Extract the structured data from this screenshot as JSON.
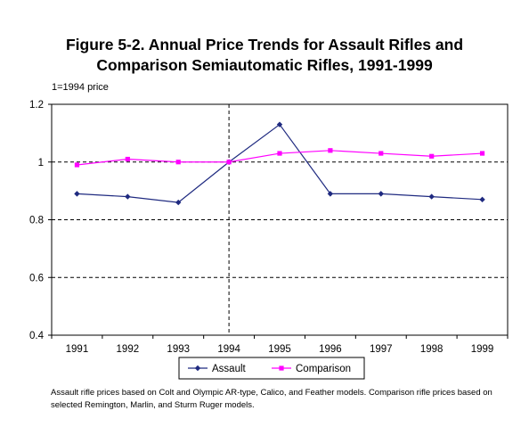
{
  "chart_data": {
    "type": "line",
    "title_line1": "Figure 5-2. Annual Price Trends for Assault Rifles and",
    "title_line2": "Comparison Semiautomatic Rifles, 1991-1999",
    "y_note": "1=1994 price",
    "categories": [
      "1991",
      "1992",
      "1993",
      "1994",
      "1995",
      "1996",
      "1997",
      "1998",
      "1999"
    ],
    "series": [
      {
        "name": "Assault",
        "color": "#1f2a80",
        "marker": "diamond",
        "values": [
          0.89,
          0.88,
          0.86,
          1.0,
          1.13,
          0.89,
          0.89,
          0.88,
          0.87
        ]
      },
      {
        "name": "Comparison",
        "color": "#ff00ff",
        "marker": "square",
        "values": [
          0.99,
          1.01,
          1.0,
          1.0,
          1.03,
          1.04,
          1.03,
          1.02,
          1.03
        ]
      }
    ],
    "ylim": [
      0.4,
      1.2
    ],
    "yticks": [
      0.4,
      0.6,
      0.8,
      1,
      1.2
    ],
    "y_tick_labels": [
      "0.4",
      "0.6",
      "0.8",
      "1",
      "1.2"
    ],
    "grid": "dashed horizontal at 0.6, 0.8, 1",
    "reference_line_x": "1994",
    "legend_position": "bottom-center",
    "footnote": "Assault rifle prices based on Colt and Olympic AR-type, Calico, and Feather models.  Comparison rifle prices based on selected Remington, Marlin, and Sturm Ruger models."
  }
}
